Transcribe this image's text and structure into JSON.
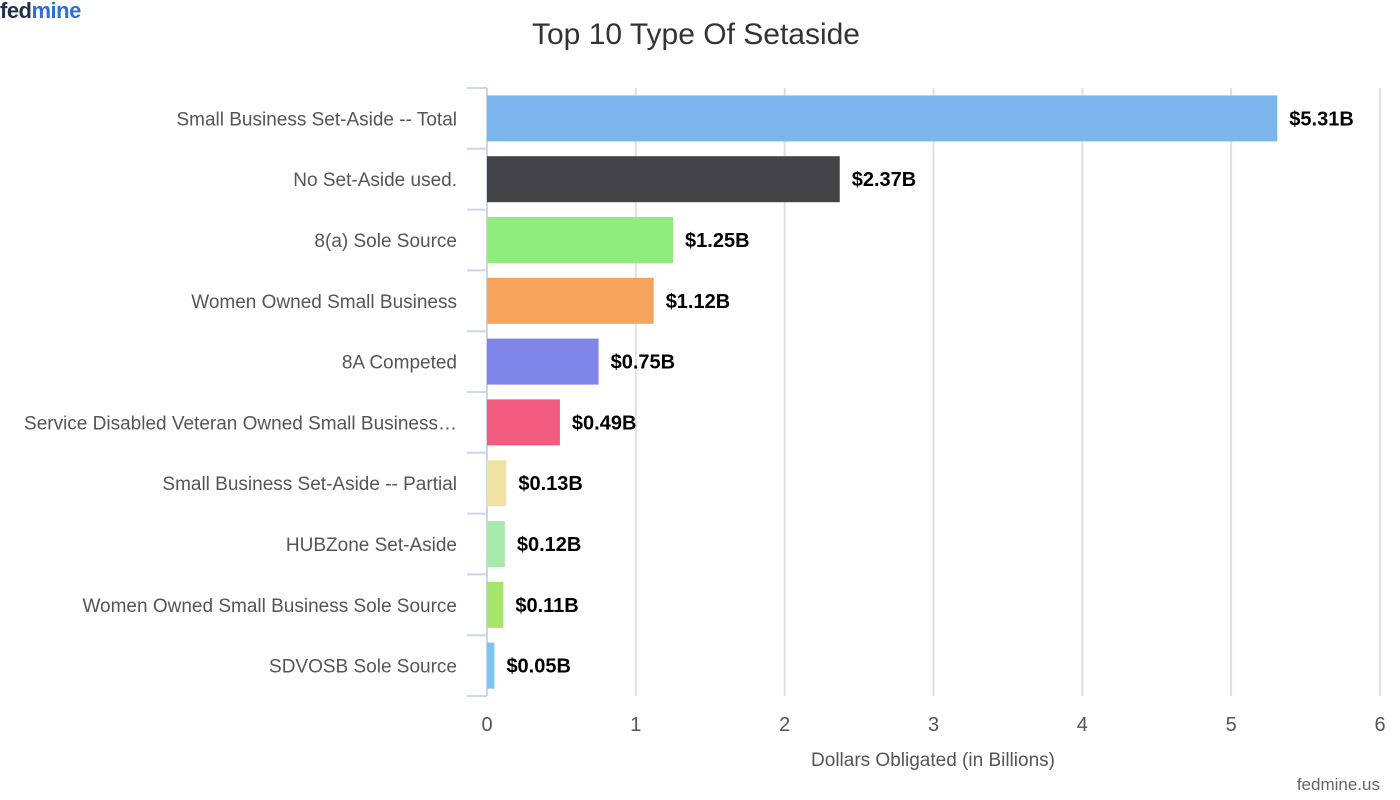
{
  "brand": {
    "part1": "fed",
    "part2": "mine"
  },
  "credit": "fedmine.us",
  "chart_data": {
    "type": "bar",
    "orientation": "horizontal",
    "title": "Top 10 Type Of Setaside",
    "xlabel": "Dollars Obligated (in Billions)",
    "ylabel": "",
    "xlim": [
      0,
      6
    ],
    "xticks": [
      "0",
      "1",
      "2",
      "3",
      "4",
      "5",
      "6"
    ],
    "grid": true,
    "categories": [
      "Small Business Set-Aside -- Total",
      "No Set-Aside used.",
      "8(a) Sole Source",
      "Women Owned Small Business",
      "8A Competed",
      "Service Disabled Veteran Owned Small Business…",
      "Small Business Set-Aside -- Partial",
      "HUBZone Set-Aside",
      "Women Owned Small Business Sole Source",
      "SDVOSB Sole Source"
    ],
    "values": [
      5.31,
      2.37,
      1.25,
      1.12,
      0.75,
      0.49,
      0.13,
      0.12,
      0.11,
      0.05
    ],
    "labels": [
      "$5.31B",
      "$2.37B",
      "$1.25B",
      "$1.12B",
      "$0.75B",
      "$0.49B",
      "$0.13B",
      "$0.12B",
      "$0.11B",
      "$0.05B"
    ],
    "colors": [
      "#7cb5ec",
      "#434348",
      "#90ed7d",
      "#f7a35c",
      "#8085e9",
      "#f15c80",
      "#f1e4a2",
      "#a8e8a8",
      "#a6e36b",
      "#7cc4f4"
    ]
  }
}
